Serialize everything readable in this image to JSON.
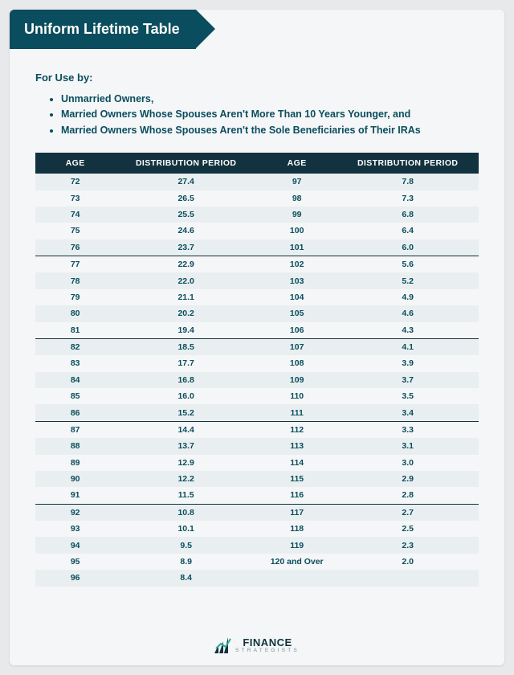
{
  "title": "Uniform Lifetime Table",
  "lead": "For Use by:",
  "bullets": [
    "Unmarried Owners,",
    "Married Owners Whose Spouses Aren't More Than 10 Years Younger, and",
    "Married Owners Whose Spouses Aren't the Sole Beneficiaries of Their IRAs"
  ],
  "table": {
    "columns": [
      "AGE",
      "DISTRIBUTION PERIOD",
      "AGE",
      "DISTRIBUTION PERIOD"
    ],
    "header_bg": "#12323f",
    "header_fg": "#ffffff",
    "row_even_bg": "#e9eff0",
    "row_odd_bg": "#f5f6f7",
    "separator_color": "#12323f",
    "separator_rows": [
      5,
      10,
      15,
      20
    ],
    "rows": [
      [
        "72",
        "27.4",
        "97",
        "7.8"
      ],
      [
        "73",
        "26.5",
        "98",
        "7.3"
      ],
      [
        "74",
        "25.5",
        "99",
        "6.8"
      ],
      [
        "75",
        "24.6",
        "100",
        "6.4"
      ],
      [
        "76",
        "23.7",
        "101",
        "6.0"
      ],
      [
        "77",
        "22.9",
        "102",
        "5.6"
      ],
      [
        "78",
        "22.0",
        "103",
        "5.2"
      ],
      [
        "79",
        "21.1",
        "104",
        "4.9"
      ],
      [
        "80",
        "20.2",
        "105",
        "4.6"
      ],
      [
        "81",
        "19.4",
        "106",
        "4.3"
      ],
      [
        "82",
        "18.5",
        "107",
        "4.1"
      ],
      [
        "83",
        "17.7",
        "108",
        "3.9"
      ],
      [
        "84",
        "16.8",
        "109",
        "3.7"
      ],
      [
        "85",
        "16.0",
        "110",
        "3.5"
      ],
      [
        "86",
        "15.2",
        "111",
        "3.4"
      ],
      [
        "87",
        "14.4",
        "112",
        "3.3"
      ],
      [
        "88",
        "13.7",
        "113",
        "3.1"
      ],
      [
        "89",
        "12.9",
        "114",
        "3.0"
      ],
      [
        "90",
        "12.2",
        "115",
        "2.9"
      ],
      [
        "91",
        "11.5",
        "116",
        "2.8"
      ],
      [
        "92",
        "10.8",
        "117",
        "2.7"
      ],
      [
        "93",
        "10.1",
        "118",
        "2.5"
      ],
      [
        "94",
        "9.5",
        "119",
        "2.3"
      ],
      [
        "95",
        "8.9",
        "120 and Over",
        "2.0"
      ],
      [
        "96",
        "8.4",
        "",
        ""
      ]
    ]
  },
  "logo": {
    "line1": "FINANCE",
    "line2": "STRATEGISTS",
    "mark_color_dark": "#12323f",
    "mark_color_accent": "#2aa89a"
  }
}
